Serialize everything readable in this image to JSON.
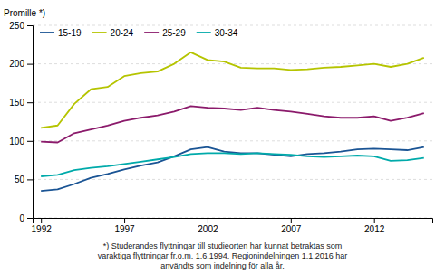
{
  "chart_data": {
    "type": "line",
    "y_label": "Promille *)",
    "x": [
      1992,
      1993,
      1994,
      1995,
      1996,
      1997,
      1998,
      1999,
      2000,
      2001,
      2002,
      2003,
      2004,
      2005,
      2006,
      2007,
      2008,
      2009,
      2010,
      2011,
      2012,
      2013,
      2014,
      2015
    ],
    "series": [
      {
        "name": "15-19",
        "color": "#1a5494",
        "values": [
          35,
          37,
          44,
          52,
          57,
          63,
          68,
          72,
          80,
          89,
          92,
          86,
          84,
          84,
          82,
          80,
          83,
          84,
          86,
          89,
          90,
          89,
          88,
          92
        ]
      },
      {
        "name": "20-24",
        "color": "#b5c400",
        "values": [
          117,
          120,
          148,
          167,
          170,
          184,
          188,
          190,
          200,
          215,
          205,
          203,
          195,
          194,
          194,
          192,
          193,
          195,
          196,
          198,
          200,
          196,
          200,
          208
        ]
      },
      {
        "name": "25-29",
        "color": "#8b1a6b",
        "values": [
          99,
          98,
          110,
          115,
          120,
          126,
          130,
          133,
          138,
          145,
          143,
          142,
          140,
          143,
          140,
          138,
          135,
          132,
          130,
          130,
          132,
          126,
          130,
          136
        ]
      },
      {
        "name": "30-34",
        "color": "#00aaaa",
        "values": [
          54,
          56,
          62,
          65,
          67,
          70,
          73,
          76,
          79,
          83,
          84,
          84,
          83,
          84,
          83,
          82,
          80,
          79,
          80,
          81,
          80,
          74,
          75,
          78
        ]
      }
    ],
    "xlim": [
      1991.5,
      2015.5
    ],
    "xticks": [
      1992,
      1997,
      2002,
      2007,
      2012
    ],
    "ylim": [
      0,
      250
    ],
    "yticks": [
      0,
      50,
      100,
      150,
      200,
      250
    ],
    "grid": true,
    "legend": "top-left",
    "annotations": [
      "*) Studerandes flyttningar till studieorten har kunnat betraktas som",
      "varaktiga flyttningar fr.o.m. 1.6.1994. Regionindelningen 1.1.2016 har",
      "användts som indelning för alla år."
    ]
  }
}
